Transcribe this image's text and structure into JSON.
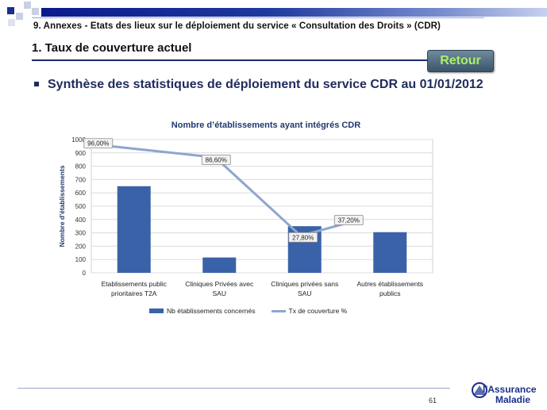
{
  "header": {
    "breadcrumb": "9. Annexes  - Etats des lieux sur le déploiement du service « Consultation  des Droits » (CDR)",
    "section_title": "1. Taux de couverture actuel",
    "retour_label": "Retour"
  },
  "bullet": {
    "text": "Synthèse des statistiques de déploiement du service CDR au 01/01/2012"
  },
  "chart_data": {
    "type": "bar",
    "title": "Nombre d’établissements ayant intégrés CDR",
    "ylabel": "Nombre d'établissements",
    "xlabel": "",
    "ylim": [
      0,
      1000
    ],
    "yticks": [
      "0",
      "100",
      "200",
      "300",
      "400",
      "500",
      "600",
      "700",
      "800",
      "900",
      "1000"
    ],
    "categories": [
      [
        "Etablissements public",
        "prioritaires T2A"
      ],
      [
        "Cliniques Privées avec",
        "SAU"
      ],
      [
        "Cliniques privées sans",
        "SAU"
      ],
      [
        "Autres établissements",
        "publics"
      ]
    ],
    "series": [
      {
        "name": "Nb établissements concernés",
        "type": "bar",
        "color": "#3a62a8",
        "values": [
          650,
          115,
          350,
          305
        ]
      },
      {
        "name": "Tx de couverture %",
        "type": "line",
        "color": "#8ea6cf",
        "values": [
          96.0,
          86.6,
          27.8,
          37.2
        ],
        "labels": [
          "96,00%",
          "86,60%",
          "27,80%",
          "37,20%"
        ]
      }
    ],
    "grid": true,
    "legend_position": "bottom"
  },
  "footer": {
    "page_number": "61",
    "logo_line1": "l'Assurance",
    "logo_line2": "Maladie"
  },
  "colors": {
    "accent": "#1b2a6b",
    "retour_text": "#a8f06a"
  }
}
